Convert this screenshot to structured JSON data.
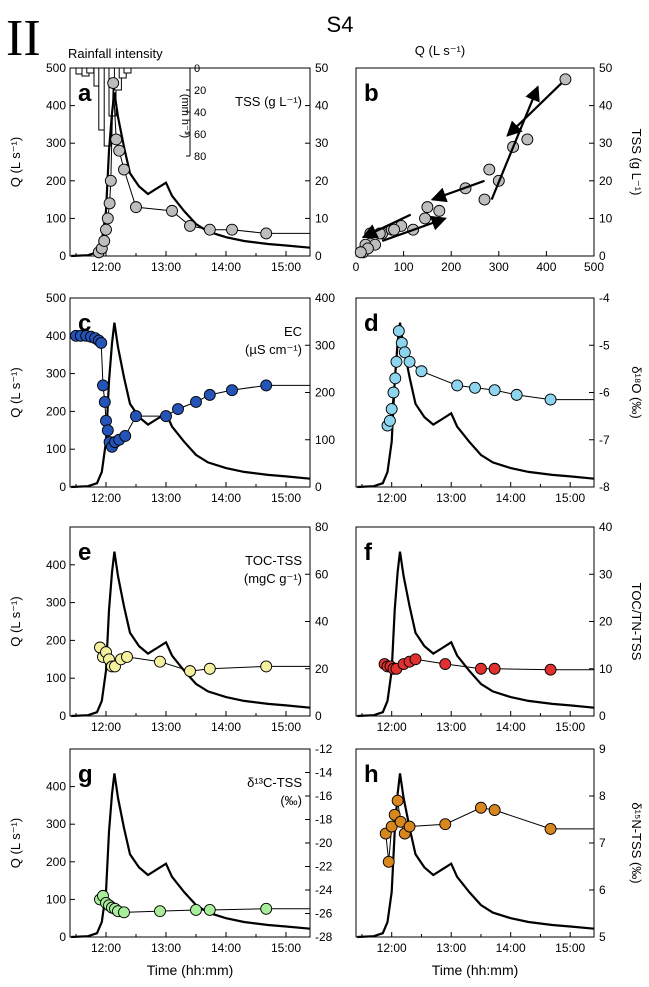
{
  "figure": {
    "roman_numeral": "II",
    "site": "S4",
    "time_axis_label": "Time (hh:mm)",
    "time_ticks": [
      "12:00",
      "13:00",
      "14:00",
      "15:00"
    ]
  },
  "chart_data": [
    {
      "panel": "a",
      "type": "line+scatter",
      "ylabel": "Q (L s⁻¹)",
      "y2label": "TSS (g L⁻¹)",
      "extra_top_label": "Rainfall intensity",
      "rain_axis_label": "(mm h⁻¹)",
      "rain_ticks": [
        "0",
        "20",
        "40",
        "60",
        "80"
      ],
      "xlim": [
        11.4,
        15.4
      ],
      "ylim": [
        0,
        500
      ],
      "y2lim": [
        0,
        50
      ],
      "y_ticks": [
        "0",
        "100",
        "200",
        "300",
        "400",
        "500"
      ],
      "y2_ticks": [
        "0",
        "10",
        "20",
        "30",
        "40",
        "50"
      ],
      "rain": [
        [
          11.5,
          6
        ],
        [
          11.6,
          8
        ],
        [
          11.68,
          5
        ],
        [
          11.8,
          18
        ],
        [
          11.88,
          62
        ],
        [
          11.97,
          78
        ],
        [
          12.05,
          48
        ],
        [
          12.14,
          22
        ],
        [
          12.22,
          10
        ],
        [
          12.3,
          5
        ]
      ],
      "rain_color": "#ffffff",
      "marker_color": "#bdbdbd",
      "series": [
        {
          "x": [
            11.88,
            11.93,
            11.97,
            12.0,
            12.03,
            12.06,
            12.08,
            12.12,
            12.17,
            12.22,
            12.3,
            12.5,
            13.1,
            13.4,
            13.73,
            14.1,
            14.67
          ],
          "y": [
            1,
            2,
            4,
            7,
            10,
            14,
            20,
            46,
            31,
            28,
            23,
            13,
            12,
            8,
            7,
            7,
            6
          ]
        }
      ]
    },
    {
      "panel": "b",
      "type": "scatter",
      "top_xlabel": "Q (L s⁻¹)",
      "y2label": "TSS (g L⁻¹)",
      "xlim": [
        0,
        500
      ],
      "ylim": [
        0,
        50
      ],
      "x_ticks": [
        "0",
        "100",
        "200",
        "300",
        "400",
        "500"
      ],
      "y2_ticks": [
        "0",
        "10",
        "20",
        "30",
        "40",
        "50"
      ],
      "marker_color": "#bdbdbd",
      "series": [
        {
          "x": [
            15,
            20,
            30,
            40,
            55,
            75,
            95,
            120,
            145,
            175,
            230,
            280,
            300,
            330,
            360,
            440,
            270,
            150,
            80,
            50,
            25,
            10
          ],
          "y": [
            1,
            3,
            6,
            3,
            6,
            7,
            8,
            7,
            10,
            12,
            18,
            23,
            20,
            29,
            31,
            47,
            15,
            13,
            7,
            6,
            2,
            1
          ]
        }
      ]
    },
    {
      "panel": "c",
      "type": "line+scatter",
      "ylabel": "Q (L s⁻¹)",
      "y2label": "EC",
      "y2units": "(µS cm⁻¹)",
      "xlim": [
        11.4,
        15.4
      ],
      "ylim": [
        0,
        500
      ],
      "y2lim": [
        0,
        400
      ],
      "y_ticks": [
        "0",
        "100",
        "200",
        "300",
        "400",
        "500"
      ],
      "y2_ticks": [
        "0",
        "100",
        "200",
        "300",
        "400"
      ],
      "marker_color": "#2454b8",
      "series": [
        {
          "x": [
            11.5,
            11.58,
            11.67,
            11.75,
            11.82,
            11.88,
            11.92,
            11.95,
            11.98,
            12.0,
            12.03,
            12.06,
            12.1,
            12.15,
            12.22,
            12.32,
            12.5,
            13.0,
            13.2,
            13.5,
            13.73,
            14.1,
            14.67
          ],
          "y": [
            320,
            320,
            320,
            318,
            315,
            310,
            305,
            215,
            180,
            140,
            120,
            95,
            85,
            95,
            100,
            108,
            150,
            150,
            165,
            180,
            195,
            205,
            215
          ]
        }
      ]
    },
    {
      "panel": "d",
      "type": "line+scatter",
      "y2label": "δ¹⁸O (‰)",
      "xlim": [
        11.4,
        15.4
      ],
      "ylim": [
        0,
        500
      ],
      "y2lim": [
        -8,
        -4
      ],
      "y2_ticks": [
        "-8",
        "-7",
        "-6",
        "-5",
        "-4"
      ],
      "marker_color": "#8dd4ee",
      "series": [
        {
          "x": [
            11.93,
            11.97,
            12.0,
            12.03,
            12.06,
            12.08,
            12.12,
            12.17,
            12.22,
            12.3,
            12.5,
            13.1,
            13.4,
            13.73,
            14.1,
            14.67
          ],
          "y": [
            -6.7,
            -6.6,
            -6.35,
            -6.0,
            -5.7,
            -5.35,
            -4.7,
            -4.95,
            -5.15,
            -5.35,
            -5.55,
            -5.85,
            -5.9,
            -5.95,
            -6.05,
            -6.15
          ]
        }
      ]
    },
    {
      "panel": "e",
      "type": "line+scatter",
      "ylabel": "Q (L s⁻¹)",
      "y2label": "TOC-TSS",
      "y2units": "(mgC g⁻¹)",
      "xlim": [
        11.4,
        15.4
      ],
      "ylim": [
        0,
        500
      ],
      "y2lim": [
        0,
        80
      ],
      "y_ticks": [
        "0",
        "100",
        "200",
        "300",
        "400"
      ],
      "y2_ticks": [
        "0",
        "20",
        "40",
        "60",
        "80"
      ],
      "marker_color": "#f5f0a0",
      "series": [
        {
          "x": [
            11.9,
            11.95,
            12.0,
            12.05,
            12.1,
            12.15,
            12.25,
            12.35,
            12.9,
            13.4,
            13.73,
            14.67
          ],
          "y": [
            29,
            25,
            27,
            24,
            21,
            21,
            24,
            25,
            23,
            19,
            20,
            21
          ]
        }
      ]
    },
    {
      "panel": "f",
      "type": "line+scatter",
      "y2label": "TOC/TN-TSS",
      "xlim": [
        11.4,
        15.4
      ],
      "ylim": [
        0,
        500
      ],
      "y2lim": [
        0,
        40
      ],
      "y2_ticks": [
        "0",
        "10",
        "20",
        "30",
        "40"
      ],
      "marker_color": "#e03030",
      "series": [
        {
          "x": [
            11.88,
            11.93,
            11.98,
            12.03,
            12.08,
            12.2,
            12.3,
            12.4,
            12.9,
            13.5,
            13.73,
            14.67
          ],
          "y": [
            11,
            10.5,
            10.5,
            10,
            10,
            11,
            11.5,
            12,
            11,
            10,
            10,
            9.8
          ]
        }
      ]
    },
    {
      "panel": "g",
      "type": "line+scatter",
      "ylabel": "Q (L s⁻¹)",
      "y2label": "δ¹³C-TSS",
      "y2units": "(‰)",
      "xlim": [
        11.4,
        15.4
      ],
      "ylim": [
        0,
        500
      ],
      "y2lim": [
        -28,
        -12
      ],
      "y_ticks": [
        "0",
        "100",
        "200",
        "300",
        "400"
      ],
      "y2_ticks": [
        "-28",
        "-26",
        "-24",
        "-22",
        "-20",
        "-18",
        "-16",
        "-14",
        "-12"
      ],
      "marker_color": "#a8ee9a",
      "series": [
        {
          "x": [
            11.9,
            11.95,
            12.0,
            12.05,
            12.1,
            12.15,
            12.2,
            12.3,
            12.9,
            13.5,
            13.73,
            14.67
          ],
          "y": [
            -24.8,
            -24.5,
            -25.1,
            -25.3,
            -25.5,
            -25.6,
            -25.8,
            -25.9,
            -25.8,
            -25.7,
            -25.7,
            -25.6
          ]
        }
      ]
    },
    {
      "panel": "h",
      "type": "line+scatter",
      "y2label": "δ¹⁵N-TSS (‰)",
      "xlim": [
        11.4,
        15.4
      ],
      "ylim": [
        0,
        500
      ],
      "y2lim": [
        5,
        9
      ],
      "y2_ticks": [
        "5",
        "6",
        "7",
        "8",
        "9"
      ],
      "marker_color": "#d8861e",
      "series": [
        {
          "x": [
            11.9,
            11.95,
            12.0,
            12.05,
            12.1,
            12.15,
            12.22,
            12.3,
            12.9,
            13.5,
            13.73,
            14.67
          ],
          "y": [
            7.2,
            6.6,
            7.35,
            7.6,
            7.9,
            7.45,
            7.2,
            7.35,
            7.4,
            7.75,
            7.7,
            7.3
          ]
        }
      ]
    }
  ],
  "discharge": {
    "x": [
      11.42,
      11.7,
      11.85,
      11.93,
      12.0,
      12.05,
      12.1,
      12.14,
      12.2,
      12.3,
      12.4,
      12.55,
      12.7,
      12.85,
      13.0,
      13.1,
      13.3,
      13.5,
      13.7,
      14.0,
      14.3,
      14.7,
      15.0,
      15.4
    ],
    "y": [
      0,
      2,
      10,
      40,
      120,
      280,
      380,
      435,
      370,
      290,
      220,
      185,
      165,
      180,
      195,
      160,
      120,
      85,
      65,
      50,
      40,
      32,
      28,
      22
    ]
  }
}
